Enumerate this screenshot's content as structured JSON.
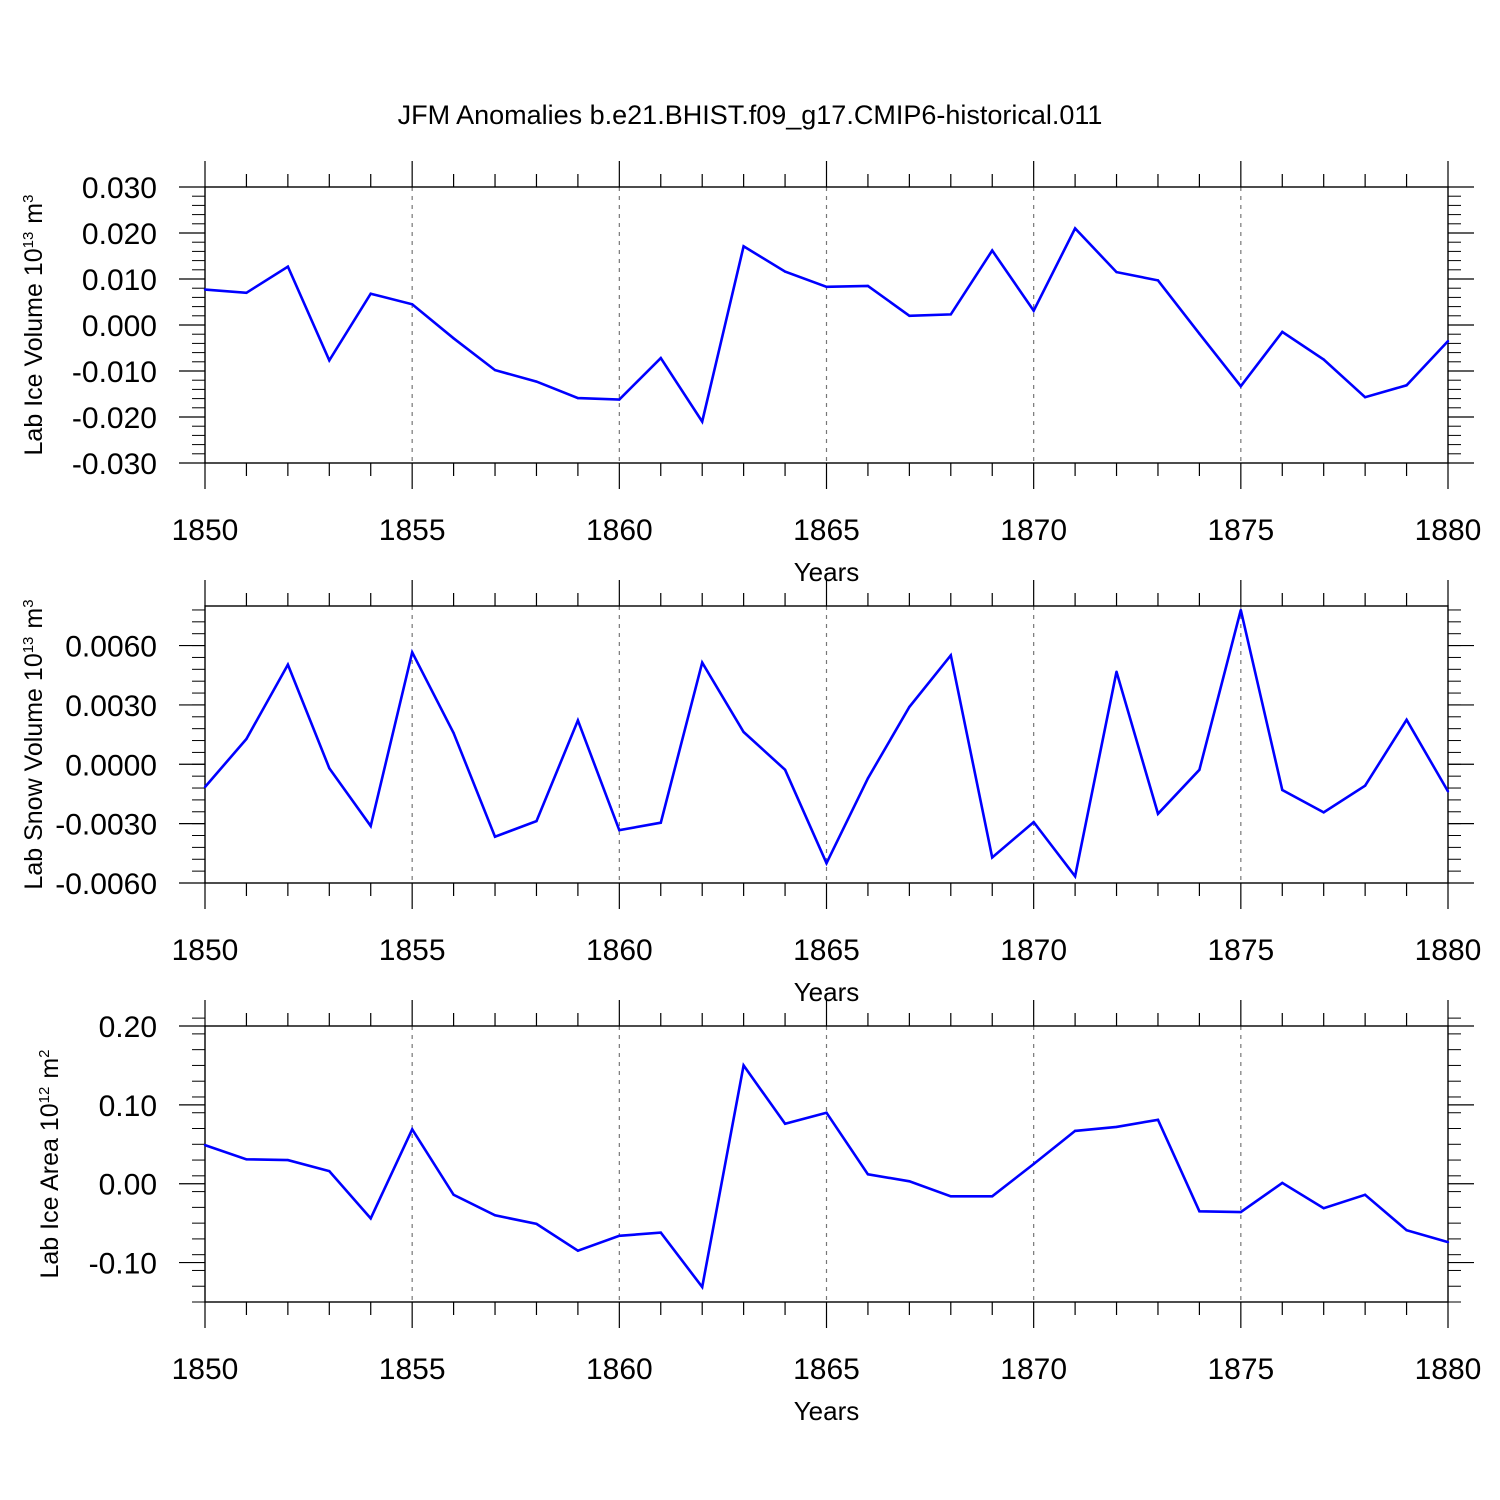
{
  "figure": {
    "title": "JFM Anomalies b.e21.BHIST.f09_g17.CMIP6-historical.011"
  },
  "chart_data": [
    {
      "type": "line",
      "ylabel": "Lab Ice Volume 10",
      "ylabel_exp": "13",
      "ylabel_unit": "m",
      "ylabel_unit_exp": "3",
      "xlabel": "Years",
      "xlim": [
        1850,
        1880
      ],
      "ylim": [
        -0.03,
        0.03
      ],
      "x_ticks": [
        "1850",
        "1855",
        "1860",
        "1865",
        "1870",
        "1875",
        "1880"
      ],
      "y_ticks": [
        "-0.030",
        "-0.020",
        "-0.010",
        "0.000",
        "0.010",
        "0.020",
        "0.030"
      ],
      "y_tick_values": [
        -0.03,
        -0.02,
        -0.01,
        0.0,
        0.01,
        0.02,
        0.03
      ],
      "y_minor_step": 0.002,
      "grid": "vertical dashed at major x ticks",
      "line_color": "#0000ff",
      "x": [
        1850,
        1851,
        1852,
        1853,
        1854,
        1855,
        1856,
        1857,
        1858,
        1859,
        1860,
        1861,
        1862,
        1863,
        1864,
        1865,
        1866,
        1867,
        1868,
        1869,
        1870,
        1871,
        1872,
        1873,
        1874,
        1875,
        1876,
        1877,
        1878,
        1879,
        1880
      ],
      "values": [
        0.0077,
        0.007,
        0.0127,
        -0.0077,
        0.0068,
        0.0045,
        -0.0029,
        -0.0098,
        -0.0123,
        -0.0159,
        -0.0162,
        -0.0072,
        -0.021,
        0.0171,
        0.0116,
        0.0083,
        0.0085,
        0.002,
        0.0023,
        0.0162,
        0.0031,
        0.021,
        0.0115,
        0.0097,
        -0.0019,
        -0.0133,
        -0.0015,
        -0.0075,
        -0.0157,
        -0.0131,
        -0.0035
      ]
    },
    {
      "type": "line",
      "ylabel": "Lab Snow Volume 10",
      "ylabel_exp": "13",
      "ylabel_unit": "m",
      "ylabel_unit_exp": "3",
      "xlabel": "Years",
      "xlim": [
        1850,
        1880
      ],
      "ylim": [
        -0.006,
        0.008
      ],
      "x_ticks": [
        "1850",
        "1855",
        "1860",
        "1865",
        "1870",
        "1875",
        "1880"
      ],
      "y_ticks": [
        "-0.0060",
        "-0.0030",
        "0.0000",
        "0.0030",
        "0.0060"
      ],
      "y_tick_values": [
        -0.006,
        -0.003,
        0.0,
        0.003,
        0.006
      ],
      "y_minor_step": 0.0006,
      "grid": "vertical dashed at major x ticks",
      "line_color": "#0000ff",
      "x": [
        1850,
        1851,
        1852,
        1853,
        1854,
        1855,
        1856,
        1857,
        1858,
        1859,
        1860,
        1861,
        1862,
        1863,
        1864,
        1865,
        1866,
        1867,
        1868,
        1869,
        1870,
        1871,
        1872,
        1873,
        1874,
        1875,
        1876,
        1877,
        1878,
        1879,
        1880
      ],
      "values": [
        -0.00115,
        0.00128,
        0.00504,
        -0.0002,
        -0.00312,
        0.00566,
        0.00158,
        -0.00366,
        -0.00287,
        0.00222,
        -0.00333,
        -0.00295,
        0.00514,
        0.00163,
        -0.00028,
        -0.005,
        -0.00071,
        0.0029,
        0.00551,
        -0.00471,
        -0.00292,
        -0.00566,
        0.00468,
        -0.0025,
        -0.00028,
        0.0078,
        -0.0013,
        -0.00243,
        -0.00108,
        0.00225,
        -0.00137
      ]
    },
    {
      "type": "line",
      "ylabel": "Lab Ice Area 10",
      "ylabel_exp": "12",
      "ylabel_unit": "m",
      "ylabel_unit_exp": "2",
      "xlabel": "Years",
      "xlim": [
        1850,
        1880
      ],
      "ylim": [
        -0.15,
        0.2
      ],
      "x_ticks": [
        "1850",
        "1855",
        "1860",
        "1865",
        "1870",
        "1875",
        "1880"
      ],
      "y_ticks": [
        "-0.10",
        "0.00",
        "0.10",
        "0.20"
      ],
      "y_tick_values": [
        -0.1,
        0.0,
        0.1,
        0.2
      ],
      "y_minor_step": 0.02,
      "grid": "vertical dashed at major x ticks",
      "line_color": "#0000ff",
      "x": [
        1850,
        1851,
        1852,
        1853,
        1854,
        1855,
        1856,
        1857,
        1858,
        1859,
        1860,
        1861,
        1862,
        1863,
        1864,
        1865,
        1866,
        1867,
        1868,
        1869,
        1870,
        1871,
        1872,
        1873,
        1874,
        1875,
        1876,
        1877,
        1878,
        1879,
        1880
      ],
      "values": [
        0.049,
        0.031,
        0.03,
        0.016,
        -0.044,
        0.069,
        -0.014,
        -0.04,
        -0.051,
        -0.085,
        -0.066,
        -0.062,
        -0.131,
        0.15,
        0.076,
        0.09,
        0.012,
        0.003,
        -0.016,
        -0.016,
        0.025,
        0.067,
        0.072,
        0.081,
        -0.035,
        -0.036,
        0.001,
        -0.031,
        -0.014,
        -0.059,
        -0.074
      ]
    }
  ]
}
